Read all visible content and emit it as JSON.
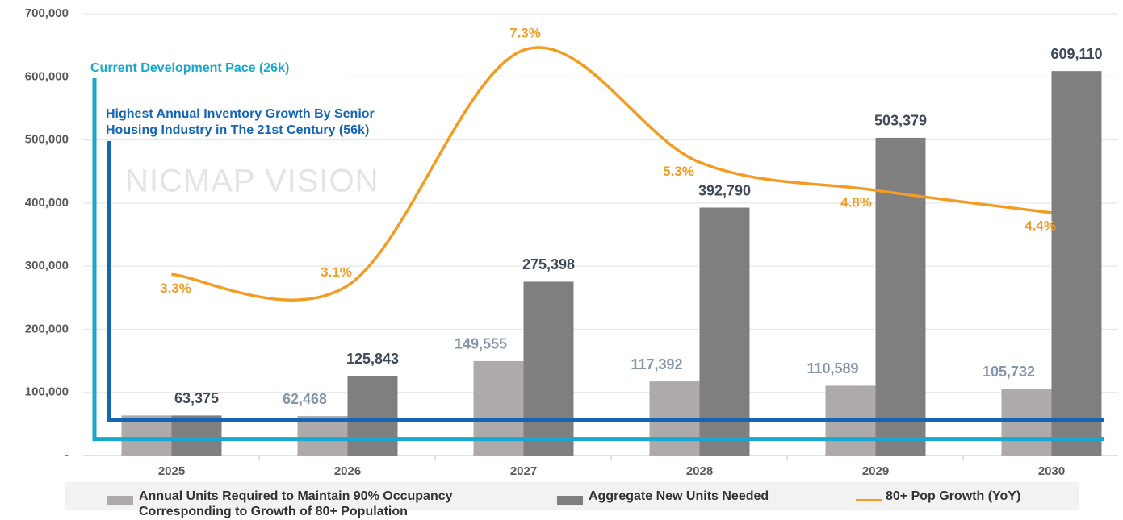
{
  "chart_data": {
    "type": "bar",
    "categories": [
      "2025",
      "2026",
      "2027",
      "2028",
      "2029",
      "2030"
    ],
    "series": [
      {
        "name": "Annual Units Required to Maintain 90% Occupancy Corresponding to Growth of 80+ Population",
        "type": "bar",
        "color": "#aeaaaa",
        "values": [
          63375,
          62468,
          149555,
          117392,
          110589,
          105732
        ],
        "value_labels": [
          null,
          "62,468",
          "149,555",
          "117,392",
          "110,589",
          "105,732"
        ]
      },
      {
        "name": "Aggregate New Units Needed",
        "type": "bar",
        "color": "#7f7f7f",
        "values": [
          63375,
          125843,
          275398,
          392790,
          503379,
          609110
        ],
        "value_labels": [
          "63,375",
          "125,843",
          "275,398",
          "392,790",
          "503,379",
          "609,110"
        ]
      },
      {
        "name": "80+ Pop Growth (YoY)",
        "type": "line",
        "axis": "y2",
        "color": "#f39c23",
        "values": [
          3.3,
          3.1,
          7.3,
          5.3,
          4.8,
          4.4
        ],
        "value_labels": [
          "3.3%",
          "3.1%",
          "7.3%",
          "5.3%",
          "4.8%",
          "4.4%"
        ]
      }
    ],
    "ylim": [
      0,
      700000
    ],
    "yticks": [
      {
        "value": 0,
        "label": "-"
      },
      {
        "value": 100000,
        "label": "100,000"
      },
      {
        "value": 200000,
        "label": "200,000"
      },
      {
        "value": 300000,
        "label": "300,000"
      },
      {
        "value": 400000,
        "label": "400,000"
      },
      {
        "value": 500000,
        "label": "500,000"
      },
      {
        "value": 600000,
        "label": "600,000"
      },
      {
        "value": 700000,
        "label": "700,000"
      }
    ],
    "y2lim": [
      0.07,
      7.95
    ],
    "grid": true,
    "legend": "bottom",
    "reference_lines": [
      {
        "value": 26000,
        "color": "#1ba6cb",
        "label": [
          "Current Development Pace (26k)"
        ]
      },
      {
        "value": 56000,
        "color": "#1565b5",
        "label": [
          "Highest Annual Inventory Growth By Senior",
          "Housing Industry in The 21st Century (56k)"
        ]
      }
    ],
    "watermark": "NICMAP VISION"
  }
}
